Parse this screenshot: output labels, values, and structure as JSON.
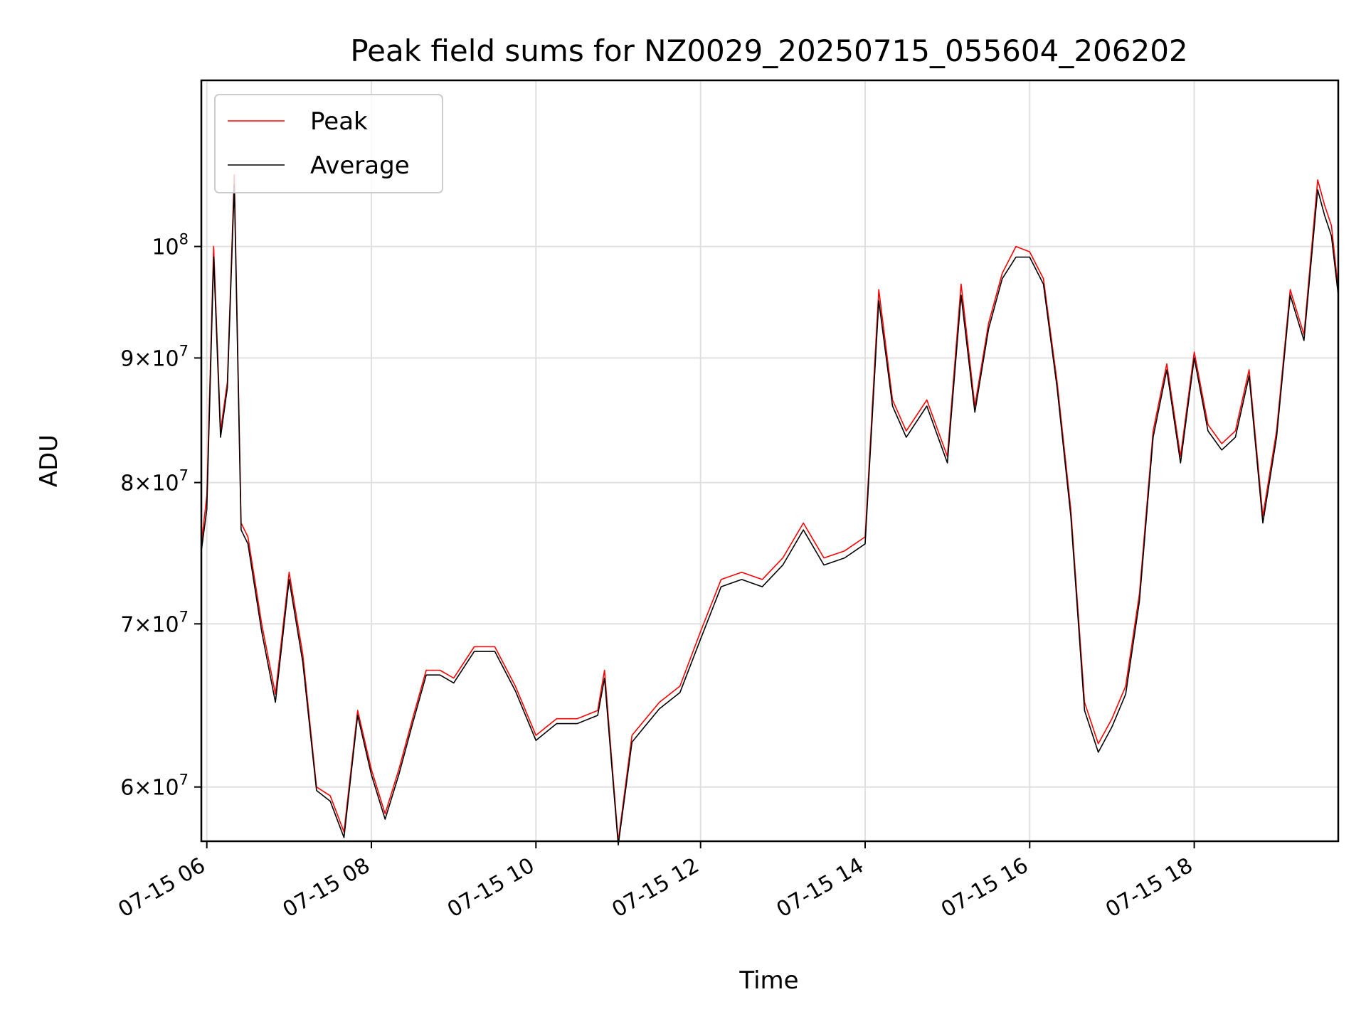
{
  "chart_data": {
    "type": "line",
    "title": "Peak field sums for NZ0029_20250715_055604_206202",
    "xlabel": "Time",
    "ylabel": "ADU",
    "y_scale": "log",
    "grid": true,
    "legend_position": "top-left",
    "xlim": [
      "2025-07-15 05:56",
      "2025-07-15 19:45"
    ],
    "ylim": [
      57000000,
      117000000
    ],
    "x_ticks": [
      {
        "x": "2025-07-15 06:00",
        "label": "07-15 06"
      },
      {
        "x": "2025-07-15 08:00",
        "label": "07-15 08"
      },
      {
        "x": "2025-07-15 10:00",
        "label": "07-15 10"
      },
      {
        "x": "2025-07-15 12:00",
        "label": "07-15 12"
      },
      {
        "x": "2025-07-15 14:00",
        "label": "07-15 14"
      },
      {
        "x": "2025-07-15 16:00",
        "label": "07-15 16"
      },
      {
        "x": "2025-07-15 18:00",
        "label": "07-15 18"
      }
    ],
    "y_ticks": [
      {
        "y": 60000000,
        "mantissa": "6",
        "base": "10",
        "exp": "7",
        "plain": false
      },
      {
        "y": 70000000,
        "mantissa": "7",
        "base": "10",
        "exp": "7",
        "plain": false
      },
      {
        "y": 80000000,
        "mantissa": "8",
        "base": "10",
        "exp": "7",
        "plain": false
      },
      {
        "y": 90000000,
        "mantissa": "9",
        "base": "10",
        "exp": "7",
        "plain": false
      },
      {
        "y": 100000000,
        "mantissa": "",
        "base": "10",
        "exp": "8",
        "plain": true
      }
    ],
    "series": [
      {
        "name": "Peak",
        "color": "#ff0000",
        "x": [
          "2025-07-15 05:56",
          "2025-07-15 06:00",
          "2025-07-15 06:05",
          "2025-07-15 06:10",
          "2025-07-15 06:15",
          "2025-07-15 06:20",
          "2025-07-15 06:25",
          "2025-07-15 06:30",
          "2025-07-15 06:40",
          "2025-07-15 06:50",
          "2025-07-15 07:00",
          "2025-07-15 07:10",
          "2025-07-15 07:20",
          "2025-07-15 07:30",
          "2025-07-15 07:40",
          "2025-07-15 07:50",
          "2025-07-15 08:00",
          "2025-07-15 08:10",
          "2025-07-15 08:20",
          "2025-07-15 08:30",
          "2025-07-15 08:40",
          "2025-07-15 08:50",
          "2025-07-15 09:00",
          "2025-07-15 09:15",
          "2025-07-15 09:30",
          "2025-07-15 09:45",
          "2025-07-15 10:00",
          "2025-07-15 10:15",
          "2025-07-15 10:30",
          "2025-07-15 10:45",
          "2025-07-15 10:50",
          "2025-07-15 11:00",
          "2025-07-15 11:10",
          "2025-07-15 11:20",
          "2025-07-15 11:30",
          "2025-07-15 11:45",
          "2025-07-15 12:00",
          "2025-07-15 12:15",
          "2025-07-15 12:30",
          "2025-07-15 12:45",
          "2025-07-15 13:00",
          "2025-07-15 13:15",
          "2025-07-15 13:30",
          "2025-07-15 13:45",
          "2025-07-15 14:00",
          "2025-07-15 14:10",
          "2025-07-15 14:20",
          "2025-07-15 14:30",
          "2025-07-15 14:45",
          "2025-07-15 15:00",
          "2025-07-15 15:10",
          "2025-07-15 15:20",
          "2025-07-15 15:30",
          "2025-07-15 15:40",
          "2025-07-15 15:50",
          "2025-07-15 16:00",
          "2025-07-15 16:10",
          "2025-07-15 16:20",
          "2025-07-15 16:30",
          "2025-07-15 16:40",
          "2025-07-15 16:50",
          "2025-07-15 17:00",
          "2025-07-15 17:10",
          "2025-07-15 17:20",
          "2025-07-15 17:30",
          "2025-07-15 17:40",
          "2025-07-15 17:50",
          "2025-07-15 18:00",
          "2025-07-15 18:10",
          "2025-07-15 18:20",
          "2025-07-15 18:30",
          "2025-07-15 18:40",
          "2025-07-15 18:50",
          "2025-07-15 19:00",
          "2025-07-15 19:10",
          "2025-07-15 19:20",
          "2025-07-15 19:30",
          "2025-07-15 19:35",
          "2025-07-15 19:40",
          "2025-07-15 19:45"
        ],
        "y": [
          75500000,
          79000000,
          100000000,
          84000000,
          88000000,
          107000000,
          77000000,
          76000000,
          70000000,
          65500000,
          73500000,
          68000000,
          60000000,
          59500000,
          57500000,
          64500000,
          61000000,
          58500000,
          61000000,
          64000000,
          67000000,
          67000000,
          66500000,
          68500000,
          68500000,
          66000000,
          63000000,
          64000000,
          64000000,
          64500000,
          67000000,
          57000000,
          63000000,
          64000000,
          65000000,
          66000000,
          69500000,
          73000000,
          73500000,
          73000000,
          74500000,
          77000000,
          74500000,
          75000000,
          76000000,
          96000000,
          86500000,
          84000000,
          86500000,
          82000000,
          96500000,
          86000000,
          93000000,
          97500000,
          100000000,
          99500000,
          97000000,
          88000000,
          78000000,
          65000000,
          62500000,
          64000000,
          66000000,
          72000000,
          84000000,
          89500000,
          82000000,
          90500000,
          84500000,
          83000000,
          84000000,
          89000000,
          77500000,
          84000000,
          96000000,
          92000000,
          106500000,
          104000000,
          102000000,
          96000000
        ]
      },
      {
        "name": "Average",
        "color": "#000000",
        "x": [
          "2025-07-15 05:56",
          "2025-07-15 06:00",
          "2025-07-15 06:05",
          "2025-07-15 06:10",
          "2025-07-15 06:15",
          "2025-07-15 06:20",
          "2025-07-15 06:25",
          "2025-07-15 06:30",
          "2025-07-15 06:40",
          "2025-07-15 06:50",
          "2025-07-15 07:00",
          "2025-07-15 07:10",
          "2025-07-15 07:20",
          "2025-07-15 07:30",
          "2025-07-15 07:40",
          "2025-07-15 07:50",
          "2025-07-15 08:00",
          "2025-07-15 08:10",
          "2025-07-15 08:20",
          "2025-07-15 08:30",
          "2025-07-15 08:40",
          "2025-07-15 08:50",
          "2025-07-15 09:00",
          "2025-07-15 09:15",
          "2025-07-15 09:30",
          "2025-07-15 09:45",
          "2025-07-15 10:00",
          "2025-07-15 10:15",
          "2025-07-15 10:30",
          "2025-07-15 10:45",
          "2025-07-15 10:50",
          "2025-07-15 11:00",
          "2025-07-15 11:10",
          "2025-07-15 11:20",
          "2025-07-15 11:30",
          "2025-07-15 11:45",
          "2025-07-15 12:00",
          "2025-07-15 12:15",
          "2025-07-15 12:30",
          "2025-07-15 12:45",
          "2025-07-15 13:00",
          "2025-07-15 13:15",
          "2025-07-15 13:30",
          "2025-07-15 13:45",
          "2025-07-15 14:00",
          "2025-07-15 14:10",
          "2025-07-15 14:20",
          "2025-07-15 14:30",
          "2025-07-15 14:45",
          "2025-07-15 15:00",
          "2025-07-15 15:10",
          "2025-07-15 15:20",
          "2025-07-15 15:30",
          "2025-07-15 15:40",
          "2025-07-15 15:50",
          "2025-07-15 16:00",
          "2025-07-15 16:10",
          "2025-07-15 16:20",
          "2025-07-15 16:30",
          "2025-07-15 16:40",
          "2025-07-15 16:50",
          "2025-07-15 17:00",
          "2025-07-15 17:10",
          "2025-07-15 17:20",
          "2025-07-15 17:30",
          "2025-07-15 17:40",
          "2025-07-15 17:50",
          "2025-07-15 18:00",
          "2025-07-15 18:10",
          "2025-07-15 18:20",
          "2025-07-15 18:30",
          "2025-07-15 18:40",
          "2025-07-15 18:50",
          "2025-07-15 19:00",
          "2025-07-15 19:10",
          "2025-07-15 19:20",
          "2025-07-15 19:30",
          "2025-07-15 19:35",
          "2025-07-15 19:40",
          "2025-07-15 19:45"
        ],
        "y": [
          75000000,
          78000000,
          99000000,
          83500000,
          87500000,
          106000000,
          76500000,
          75500000,
          69500000,
          65000000,
          73000000,
          67500000,
          59800000,
          59200000,
          57200000,
          64200000,
          60700000,
          58200000,
          60700000,
          63700000,
          66700000,
          66700000,
          66200000,
          68200000,
          68200000,
          65700000,
          62700000,
          63700000,
          63700000,
          64200000,
          66500000,
          56800000,
          62600000,
          63600000,
          64600000,
          65600000,
          69000000,
          72500000,
          73000000,
          72500000,
          74000000,
          76500000,
          74000000,
          74500000,
          75500000,
          95000000,
          86000000,
          83500000,
          86000000,
          81500000,
          95500000,
          85500000,
          92500000,
          97000000,
          99000000,
          99000000,
          96500000,
          87500000,
          77500000,
          64500000,
          62000000,
          63500000,
          65500000,
          71500000,
          83500000,
          89000000,
          81500000,
          90000000,
          84000000,
          82500000,
          83500000,
          88500000,
          77000000,
          83500000,
          95500000,
          91500000,
          105500000,
          103000000,
          101000000,
          95500000
        ]
      }
    ]
  }
}
